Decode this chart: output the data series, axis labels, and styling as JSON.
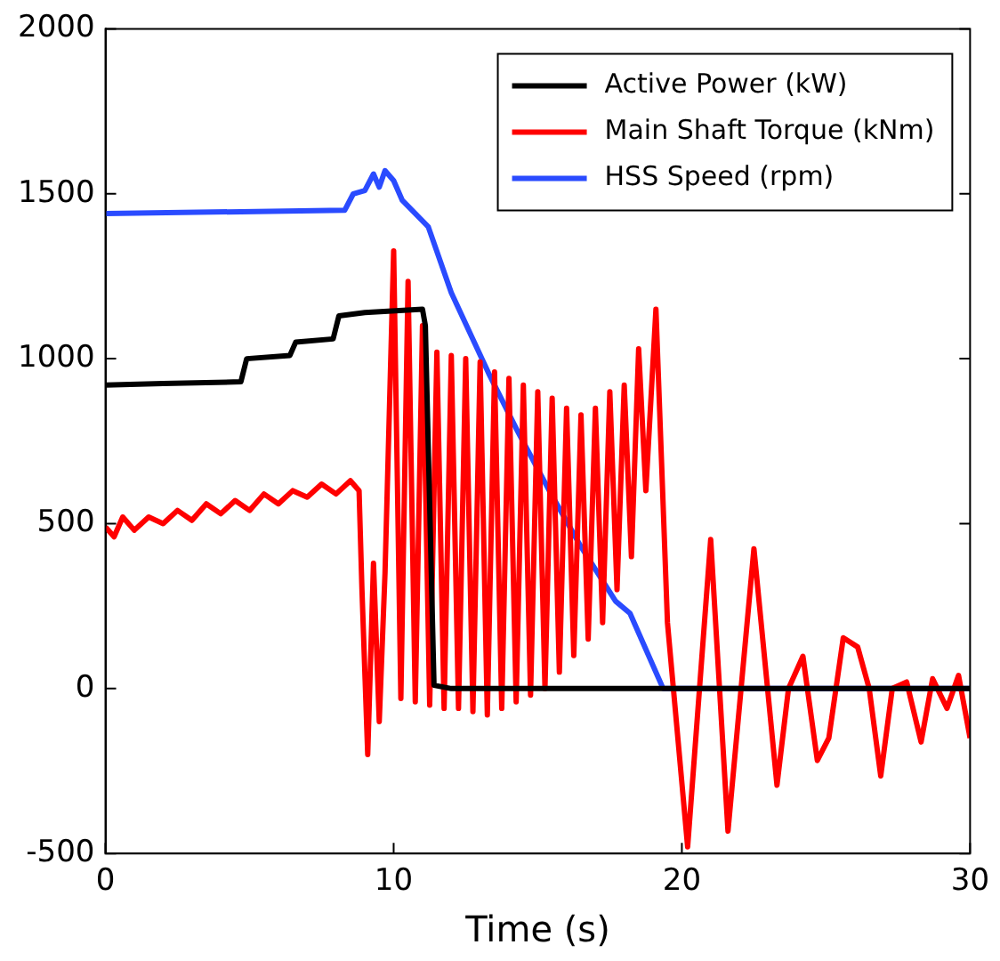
{
  "chart_data": {
    "type": "line",
    "xlabel": "Time (s)",
    "xlim": [
      0,
      30
    ],
    "xticks": [
      0,
      10,
      20,
      30
    ],
    "ylim": [
      -500,
      2000
    ],
    "yticks": [
      -500,
      0,
      500,
      1000,
      1500,
      2000
    ],
    "grid": false,
    "legend": "top right",
    "marker": "none",
    "line_style": "solid",
    "series": [
      {
        "name": "Active Power (kW)",
        "color": "#000000",
        "x": [
          0,
          2,
          4.7,
          4.9,
          6.4,
          6.6,
          7.9,
          8.1,
          9,
          11,
          11.1,
          11.4,
          12,
          30
        ],
        "values": [
          920,
          925,
          930,
          1000,
          1010,
          1050,
          1060,
          1130,
          1140,
          1150,
          1100,
          10,
          0,
          0
        ]
      },
      {
        "name": "Main Shaft Torque (kNm)",
        "color": "#ff0000",
        "x": [
          0,
          0.3,
          0.6,
          1,
          1.5,
          2,
          2.5,
          3,
          3.5,
          4,
          4.5,
          5,
          5.5,
          6,
          6.5,
          7,
          7.5,
          8,
          8.5,
          8.8,
          8.9,
          9.1,
          9.3,
          9.5,
          9.7,
          10,
          10.25,
          10.5,
          10.75,
          11,
          11.25,
          11.5,
          11.75,
          12,
          12.25,
          12.5,
          12.75,
          13,
          13.25,
          13.5,
          13.75,
          14,
          14.25,
          14.5,
          14.75,
          15,
          15.25,
          15.5,
          15.75,
          16,
          16.25,
          16.5,
          16.75,
          17,
          17.25,
          17.5,
          17.75,
          18,
          18.25,
          18.5,
          18.75,
          19.1,
          19.5,
          20.2,
          21,
          21.6,
          22.5,
          23.3,
          23.7,
          24.2,
          24.7,
          25.1,
          25.6,
          26.1,
          26.5,
          26.9,
          27.3,
          27.8,
          28.3,
          28.7,
          29.2,
          29.6,
          30
        ],
        "values": [
          490,
          460,
          520,
          480,
          520,
          500,
          540,
          510,
          560,
          530,
          570,
          540,
          590,
          560,
          600,
          580,
          620,
          590,
          630,
          600,
          300,
          -200,
          380,
          -100,
          350,
          1327,
          -30,
          1234,
          -40,
          1100,
          -50,
          1020,
          -60,
          1010,
          -60,
          1000,
          -70,
          990,
          -80,
          960,
          -60,
          940,
          -40,
          920,
          -20,
          900,
          0,
          880,
          50,
          850,
          100,
          830,
          150,
          850,
          200,
          900,
          300,
          920,
          400,
          1030,
          600,
          1150,
          200,
          -480,
          452,
          -432,
          424,
          -293,
          0,
          98,
          -218,
          -150,
          154,
          126,
          0,
          -265,
          0,
          20,
          -162,
          30,
          -60,
          40,
          -150
        ]
      },
      {
        "name": "HSS Speed (rpm)",
        "color": "#2a4bff",
        "x": [
          0,
          8.3,
          8.6,
          9,
          9.3,
          9.5,
          9.7,
          10,
          10.3,
          11.2,
          12,
          13.3,
          14.3,
          15.4,
          16.5,
          17.7,
          18.2,
          19.35,
          30
        ],
        "values": [
          1440,
          1450,
          1500,
          1510,
          1560,
          1520,
          1570,
          1540,
          1480,
          1400,
          1200,
          955,
          780,
          600,
          430,
          265,
          228,
          0,
          0
        ]
      }
    ]
  }
}
